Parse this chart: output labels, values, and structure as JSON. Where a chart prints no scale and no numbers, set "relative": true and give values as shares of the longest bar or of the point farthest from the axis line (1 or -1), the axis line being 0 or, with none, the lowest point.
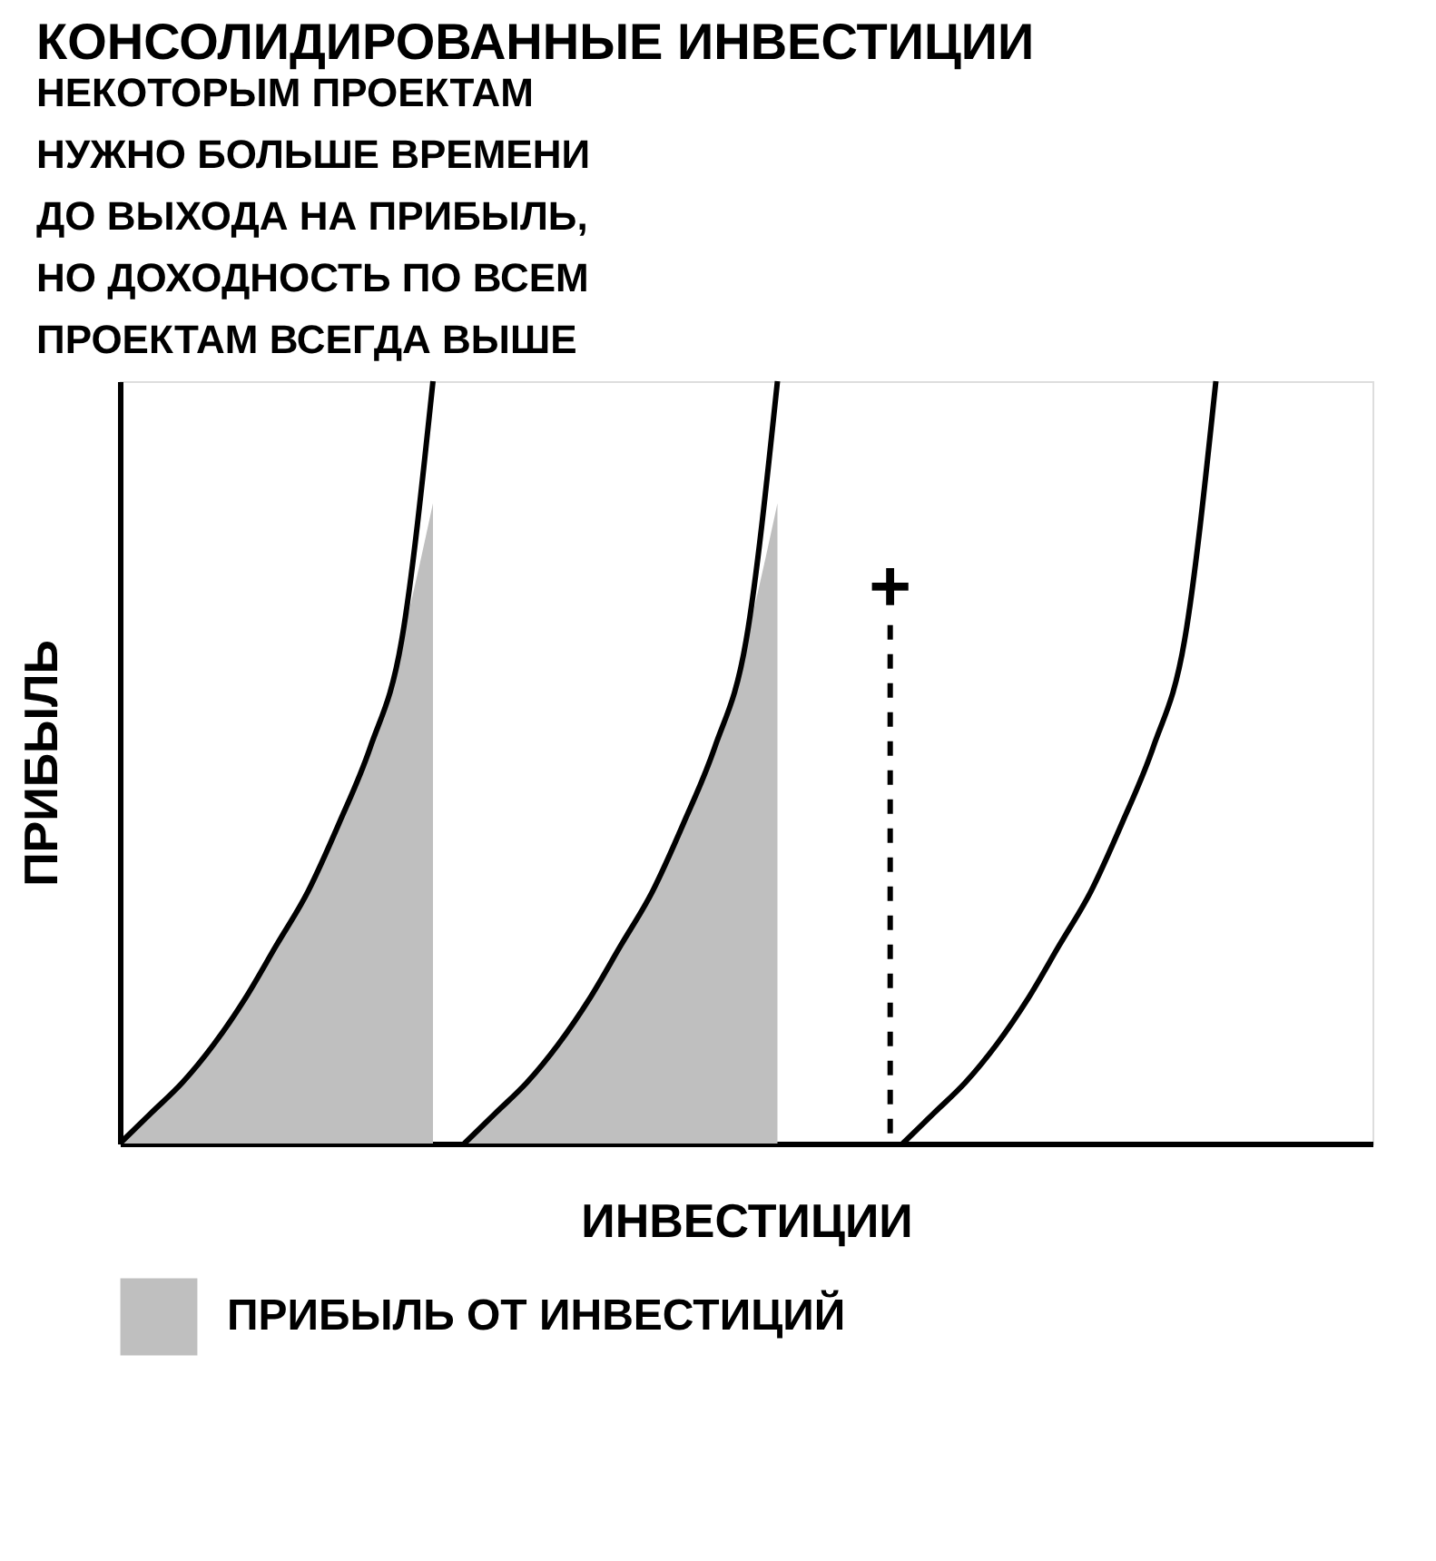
{
  "chart_data": {
    "type": "line",
    "relative": true,
    "title": "КОНСОЛИДИРОВАННЫЕ ИНВЕСТИЦИИ",
    "subtitle": "НЕКОТОРЫМ ПРОЕКТАМ\nНУЖНО БОЛЬШЕ ВРЕМЕНИ\nДО ВЫХОДА НА ПРИБЫЛЬ,\nНО ДОХОДНОСТЬ ПО ВСЕМ\nПРОЕКТАМ ВСЕГДА ВЫШЕ",
    "xlabel": "ИНВЕСТИЦИИ",
    "ylabel": "ПРИБЫЛЬ",
    "grid": false,
    "legend": "bottom",
    "categories": [
      null,
      null,
      null,
      null,
      null,
      null,
      null,
      null,
      null,
      null,
      null,
      null,
      null,
      null,
      null,
      null,
      null,
      null,
      null,
      null,
      null,
      null,
      null,
      null,
      null,
      null,
      null,
      null,
      null,
      null,
      null,
      null,
      null,
      null,
      null,
      null,
      null,
      null,
      null,
      null,
      null
    ],
    "series": [
      {
        "name": "ПРИБЫЛЬ ОТ ИНВЕСТИЦИЙ",
        "type": "area",
        "color": "#bfbfbf",
        "values": [
          0,
          0.04,
          0.08,
          0.13,
          0.19,
          0.26,
          0.33,
          0.42,
          0.52,
          0.66,
          0.84,
          null,
          null,
          null,
          null,
          null,
          null,
          null,
          null,
          null,
          null,
          null,
          null,
          null,
          null,
          null,
          null,
          null,
          null,
          null,
          null,
          null,
          null,
          null,
          null,
          null,
          null,
          null,
          null,
          null,
          null
        ]
      },
      {
        "type": "area",
        "color": "#bfbfbf",
        "values": [
          null,
          null,
          null,
          null,
          null,
          null,
          null,
          null,
          null,
          null,
          null,
          0,
          0.04,
          0.08,
          0.13,
          0.19,
          0.26,
          0.33,
          0.42,
          0.52,
          0.66,
          0.84,
          null,
          null,
          null,
          null,
          null,
          null,
          null,
          null,
          null,
          null,
          null,
          null,
          null,
          null,
          null,
          null,
          null,
          null,
          null
        ]
      },
      {
        "color": "#000000",
        "values": [
          0,
          0.04,
          0.08,
          0.13,
          0.19,
          0.26,
          0.33,
          0.42,
          0.52,
          0.66,
          1.0,
          null,
          null,
          null,
          null,
          null,
          null,
          null,
          null,
          null,
          null,
          null,
          null,
          null,
          null,
          null,
          null,
          null,
          null,
          null,
          null,
          null,
          null,
          null,
          null,
          null,
          null,
          null,
          null,
          null,
          null
        ]
      },
      {
        "color": "#000000",
        "values": [
          null,
          null,
          null,
          null,
          null,
          null,
          null,
          null,
          null,
          null,
          null,
          0,
          0.04,
          0.08,
          0.13,
          0.19,
          0.26,
          0.33,
          0.42,
          0.52,
          0.66,
          1.0,
          null,
          null,
          null,
          null,
          null,
          null,
          null,
          null,
          null,
          null,
          null,
          null,
          null,
          null,
          null,
          null,
          null,
          null,
          null
        ]
      },
      {
        "color": "#000000",
        "values": [
          null,
          null,
          null,
          null,
          null,
          null,
          null,
          null,
          null,
          null,
          null,
          null,
          null,
          null,
          null,
          null,
          null,
          null,
          null,
          null,
          null,
          null,
          null,
          null,
          null,
          0,
          0.04,
          0.08,
          0.13,
          0.19,
          0.26,
          0.33,
          0.42,
          0.52,
          0.66,
          1.0,
          null,
          null,
          null,
          null,
          null
        ]
      }
    ],
    "annotations": [
      "+"
    ]
  }
}
